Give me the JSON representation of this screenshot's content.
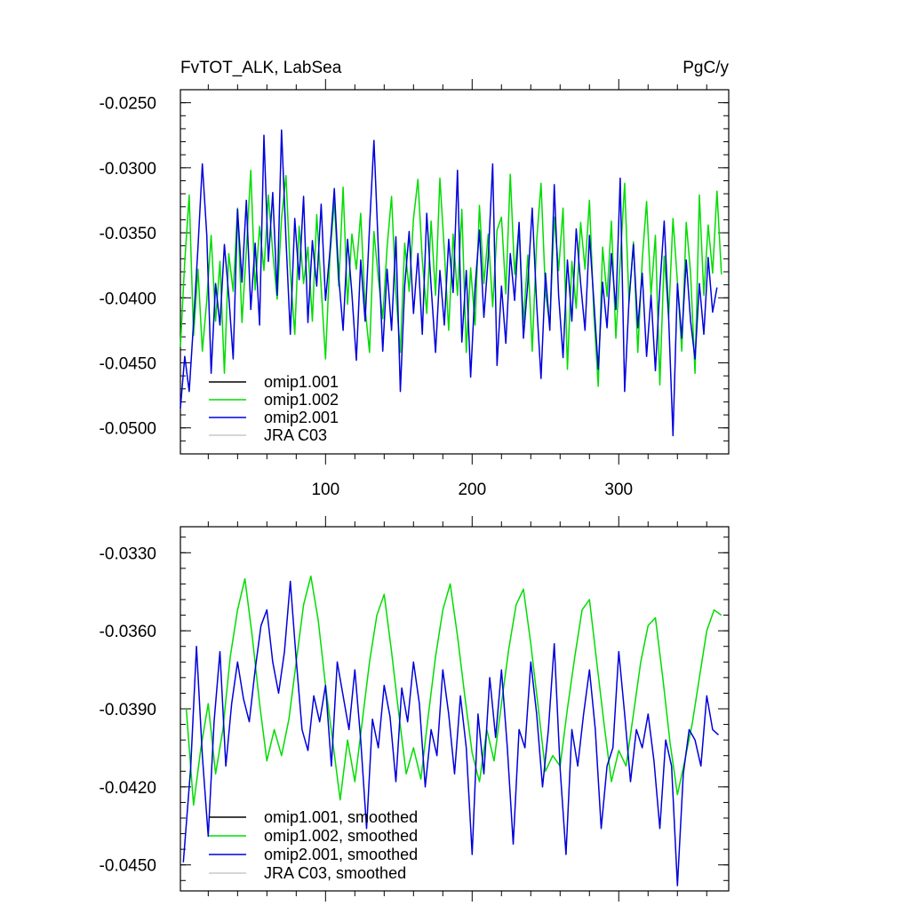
{
  "chart_data": [
    {
      "type": "line",
      "title": "FvTOT_ALK, LabSea",
      "units": "PgC/y",
      "xlim": [
        1,
        375
      ],
      "ylim": [
        -0.052,
        -0.024
      ],
      "xticks": [
        100,
        200,
        300
      ],
      "xtick_labels": [
        "100",
        "200",
        "300"
      ],
      "yticks": [
        -0.025,
        -0.03,
        -0.035,
        -0.04,
        -0.045,
        -0.05
      ],
      "ytick_labels": [
        "-0.0250",
        "-0.0300",
        "-0.0350",
        "-0.0400",
        "-0.0450",
        "-0.0500"
      ],
      "legend_position": "bottom-left",
      "series": [
        {
          "name": "omip1.001",
          "color": "#000000",
          "values": []
        },
        {
          "name": "omip1.002",
          "color": "#00dd00",
          "x": [
            1,
            4,
            7,
            10,
            13,
            16,
            19,
            22,
            25,
            28,
            31,
            34,
            37,
            40,
            43,
            46,
            49,
            52,
            55,
            58,
            61,
            64,
            67,
            70,
            73,
            76,
            79,
            82,
            85,
            88,
            91,
            94,
            97,
            100,
            103,
            106,
            109,
            112,
            115,
            118,
            121,
            124,
            127,
            130,
            133,
            136,
            139,
            142,
            145,
            148,
            151,
            154,
            157,
            160,
            163,
            166,
            169,
            172,
            175,
            178,
            181,
            184,
            187,
            190,
            193,
            196,
            199,
            202,
            205,
            208,
            211,
            214,
            217,
            220,
            223,
            226,
            229,
            232,
            235,
            238,
            241,
            244,
            247,
            250,
            253,
            256,
            259,
            262,
            265,
            268,
            271,
            274,
            277,
            280,
            283,
            286,
            289,
            292,
            295,
            298,
            301,
            304,
            307,
            310,
            313,
            316,
            319,
            322,
            325,
            328,
            331,
            334,
            337,
            340,
            343,
            346,
            349,
            352,
            355,
            358,
            361,
            364,
            367,
            370
          ],
          "values": [
            -0.0438,
            -0.0372,
            -0.0321,
            -0.0429,
            -0.0378,
            -0.0441,
            -0.0402,
            -0.0352,
            -0.0418,
            -0.0372,
            -0.0458,
            -0.0366,
            -0.0395,
            -0.0331,
            -0.0419,
            -0.0363,
            -0.0302,
            -0.0394,
            -0.0345,
            -0.0379,
            -0.0321,
            -0.0365,
            -0.0401,
            -0.0339,
            -0.0306,
            -0.0381,
            -0.0428,
            -0.0345,
            -0.0389,
            -0.0361,
            -0.0418,
            -0.0336,
            -0.0392,
            -0.0447,
            -0.0368,
            -0.0326,
            -0.0391,
            -0.0315,
            -0.0405,
            -0.0351,
            -0.0378,
            -0.0335,
            -0.0408,
            -0.0442,
            -0.0349,
            -0.0385,
            -0.0416,
            -0.0361,
            -0.0322,
            -0.0397,
            -0.0442,
            -0.0358,
            -0.0395,
            -0.0339,
            -0.0309,
            -0.0371,
            -0.0412,
            -0.0341,
            -0.0398,
            -0.0308,
            -0.0364,
            -0.0425,
            -0.0351,
            -0.0398,
            -0.0332,
            -0.0442,
            -0.0377,
            -0.0421,
            -0.0329,
            -0.0389,
            -0.0351,
            -0.0407,
            -0.0348,
            -0.0338,
            -0.0397,
            -0.0305,
            -0.0382,
            -0.0344,
            -0.0419,
            -0.0367,
            -0.0441,
            -0.0356,
            -0.0312,
            -0.0396,
            -0.0421,
            -0.0338,
            -0.0379,
            -0.0331,
            -0.0455,
            -0.0372,
            -0.0408,
            -0.0342,
            -0.0378,
            -0.0325,
            -0.0412,
            -0.0468,
            -0.0361,
            -0.0399,
            -0.0341,
            -0.0431,
            -0.0372,
            -0.0312,
            -0.0404,
            -0.0357,
            -0.0442,
            -0.0371,
            -0.0326,
            -0.0398,
            -0.0352,
            -0.0467,
            -0.0368,
            -0.0415,
            -0.0339,
            -0.0388,
            -0.0441,
            -0.0342,
            -0.0381,
            -0.0458,
            -0.0321,
            -0.0398,
            -0.0344,
            -0.0381,
            -0.0318,
            -0.0382
          ]
        },
        {
          "name": "omip2.001",
          "color": "#0000dd",
          "x": [
            1,
            4,
            7,
            10,
            13,
            16,
            19,
            22,
            25,
            28,
            31,
            34,
            37,
            40,
            43,
            46,
            49,
            52,
            55,
            58,
            61,
            64,
            67,
            70,
            73,
            76,
            79,
            82,
            85,
            88,
            91,
            94,
            97,
            100,
            103,
            106,
            109,
            112,
            115,
            118,
            121,
            124,
            127,
            130,
            133,
            136,
            139,
            142,
            145,
            148,
            151,
            154,
            157,
            160,
            163,
            166,
            169,
            172,
            175,
            178,
            181,
            184,
            187,
            190,
            193,
            196,
            199,
            202,
            205,
            208,
            211,
            214,
            217,
            220,
            223,
            226,
            229,
            232,
            235,
            238,
            241,
            244,
            247,
            250,
            253,
            256,
            259,
            262,
            265,
            268,
            271,
            274,
            277,
            280,
            283,
            286,
            289,
            292,
            295,
            298,
            301,
            304,
            307,
            310,
            313,
            316,
            319,
            322,
            325,
            328,
            331,
            334,
            337,
            340,
            343,
            346,
            349,
            352,
            355,
            358,
            361,
            364,
            367
          ],
          "values": [
            -0.0485,
            -0.0445,
            -0.0472,
            -0.0419,
            -0.0361,
            -0.0297,
            -0.0352,
            -0.0458,
            -0.0389,
            -0.0421,
            -0.0359,
            -0.0398,
            -0.0447,
            -0.0332,
            -0.0388,
            -0.0325,
            -0.0409,
            -0.0358,
            -0.0421,
            -0.0275,
            -0.0372,
            -0.0319,
            -0.0398,
            -0.0271,
            -0.0355,
            -0.0428,
            -0.0339,
            -0.0386,
            -0.0322,
            -0.0419,
            -0.0356,
            -0.0391,
            -0.0328,
            -0.0402,
            -0.0364,
            -0.0316,
            -0.0384,
            -0.0425,
            -0.0355,
            -0.0397,
            -0.0448,
            -0.0371,
            -0.0418,
            -0.0346,
            -0.0279,
            -0.0362,
            -0.0441,
            -0.0378,
            -0.0425,
            -0.0353,
            -0.0472,
            -0.0391,
            -0.0349,
            -0.0412,
            -0.0366,
            -0.0428,
            -0.0335,
            -0.0391,
            -0.0442,
            -0.0379,
            -0.0421,
            -0.0355,
            -0.0396,
            -0.0302,
            -0.0434,
            -0.0379,
            -0.0461,
            -0.0392,
            -0.0348,
            -0.0415,
            -0.0369,
            -0.0297,
            -0.0452,
            -0.0391,
            -0.0435,
            -0.0366,
            -0.0402,
            -0.0342,
            -0.0431,
            -0.0388,
            -0.0331,
            -0.0405,
            -0.0462,
            -0.0381,
            -0.0425,
            -0.0313,
            -0.0398,
            -0.0446,
            -0.0371,
            -0.0418,
            -0.0347,
            -0.0389,
            -0.0425,
            -0.0352,
            -0.0402,
            -0.0455,
            -0.0388,
            -0.0423,
            -0.0366,
            -0.0409,
            -0.0308,
            -0.0472,
            -0.0402,
            -0.0359,
            -0.0423,
            -0.0381,
            -0.0445,
            -0.0398,
            -0.0456,
            -0.0392,
            -0.0341,
            -0.0415,
            -0.0506,
            -0.0389,
            -0.0431,
            -0.0371,
            -0.0418,
            -0.0447,
            -0.0389,
            -0.0428,
            -0.0369,
            -0.0411,
            -0.0392
          ]
        },
        {
          "name": "JRA C03",
          "color": "#c8c8c8",
          "values": []
        }
      ]
    },
    {
      "type": "line",
      "title": "",
      "xlim": [
        1,
        375
      ],
      "ylim": [
        -0.046,
        -0.032
      ],
      "xticks": [
        100,
        200,
        300
      ],
      "xtick_labels": [
        "",
        "",
        ""
      ],
      "yticks": [
        -0.033,
        -0.036,
        -0.039,
        -0.042,
        -0.045
      ],
      "ytick_labels": [
        "-0.0330",
        "-0.0360",
        "-0.0390",
        "-0.0420",
        "-0.0450"
      ],
      "legend_position": "bottom-left",
      "series": [
        {
          "name": "omip1.001, smoothed",
          "color": "#000000",
          "values": []
        },
        {
          "name": "omip1.002, smoothed",
          "color": "#00dd00",
          "x": [
            5,
            10,
            15,
            20,
            25,
            30,
            35,
            40,
            45,
            50,
            55,
            60,
            65,
            70,
            75,
            80,
            85,
            90,
            95,
            100,
            105,
            110,
            115,
            120,
            125,
            130,
            135,
            140,
            145,
            150,
            155,
            160,
            165,
            170,
            175,
            180,
            185,
            190,
            195,
            200,
            205,
            210,
            215,
            220,
            225,
            230,
            235,
            240,
            245,
            250,
            255,
            260,
            265,
            270,
            275,
            280,
            285,
            290,
            295,
            300,
            305,
            310,
            315,
            320,
            325,
            330,
            335,
            340,
            345,
            350,
            355,
            360,
            365,
            370
          ],
          "values": [
            -0.039,
            -0.0427,
            -0.0405,
            -0.0388,
            -0.0415,
            -0.0398,
            -0.037,
            -0.0352,
            -0.034,
            -0.0362,
            -0.0388,
            -0.041,
            -0.0398,
            -0.0408,
            -0.0394,
            -0.0372,
            -0.035,
            -0.0339,
            -0.0356,
            -0.0381,
            -0.0403,
            -0.0425,
            -0.0402,
            -0.0418,
            -0.0395,
            -0.0372,
            -0.0354,
            -0.0346,
            -0.0368,
            -0.0392,
            -0.0415,
            -0.0405,
            -0.0417,
            -0.0393,
            -0.037,
            -0.0352,
            -0.0342,
            -0.0362,
            -0.0385,
            -0.0407,
            -0.0418,
            -0.0398,
            -0.041,
            -0.0388,
            -0.0367,
            -0.035,
            -0.0344,
            -0.0365,
            -0.0389,
            -0.0414,
            -0.0408,
            -0.0412,
            -0.039,
            -0.037,
            -0.0352,
            -0.0348,
            -0.0372,
            -0.0396,
            -0.0418,
            -0.0406,
            -0.0412,
            -0.0392,
            -0.0372,
            -0.0358,
            -0.0355,
            -0.0378,
            -0.0403,
            -0.0423,
            -0.041,
            -0.0396,
            -0.0378,
            -0.036,
            -0.0352,
            -0.0354
          ]
        },
        {
          "name": "omip2.001, smoothed",
          "color": "#0000dd",
          "x": [
            3,
            8,
            12,
            16,
            20,
            24,
            28,
            32,
            36,
            40,
            44,
            48,
            52,
            56,
            60,
            64,
            68,
            72,
            76,
            80,
            84,
            88,
            92,
            96,
            100,
            104,
            108,
            112,
            116,
            120,
            124,
            128,
            132,
            136,
            140,
            144,
            148,
            152,
            156,
            160,
            164,
            168,
            172,
            176,
            180,
            184,
            188,
            192,
            196,
            200,
            204,
            208,
            212,
            216,
            220,
            224,
            228,
            232,
            236,
            240,
            244,
            248,
            252,
            256,
            260,
            264,
            268,
            272,
            276,
            280,
            284,
            288,
            292,
            296,
            300,
            304,
            308,
            312,
            316,
            320,
            324,
            328,
            332,
            336,
            340,
            344,
            348,
            352,
            356,
            360,
            364,
            368
          ],
          "values": [
            -0.0449,
            -0.0413,
            -0.0366,
            -0.0408,
            -0.0439,
            -0.0395,
            -0.0368,
            -0.0412,
            -0.0388,
            -0.0372,
            -0.0386,
            -0.0395,
            -0.0375,
            -0.0358,
            -0.0352,
            -0.0372,
            -0.0384,
            -0.0368,
            -0.0341,
            -0.0371,
            -0.0398,
            -0.0406,
            -0.0385,
            -0.0395,
            -0.0381,
            -0.0412,
            -0.0372,
            -0.0385,
            -0.0398,
            -0.0375,
            -0.0402,
            -0.0436,
            -0.0394,
            -0.0405,
            -0.0381,
            -0.0393,
            -0.0418,
            -0.0382,
            -0.0395,
            -0.0372,
            -0.0388,
            -0.042,
            -0.0398,
            -0.0408,
            -0.0375,
            -0.0392,
            -0.0415,
            -0.0385,
            -0.0405,
            -0.0446,
            -0.0392,
            -0.0415,
            -0.0378,
            -0.0401,
            -0.0375,
            -0.0405,
            -0.0442,
            -0.0398,
            -0.0405,
            -0.0372,
            -0.0392,
            -0.042,
            -0.0398,
            -0.0365,
            -0.0413,
            -0.0446,
            -0.0398,
            -0.0412,
            -0.0392,
            -0.0375,
            -0.0398,
            -0.0436,
            -0.0412,
            -0.0405,
            -0.0368,
            -0.0392,
            -0.0418,
            -0.0398,
            -0.0405,
            -0.0392,
            -0.041,
            -0.0436,
            -0.0402,
            -0.0412,
            -0.0458,
            -0.0415,
            -0.0398,
            -0.0402,
            -0.0412,
            -0.0385,
            -0.0398,
            -0.04
          ]
        },
        {
          "name": "JRA C03, smoothed",
          "color": "#c8c8c8",
          "values": []
        }
      ]
    }
  ]
}
